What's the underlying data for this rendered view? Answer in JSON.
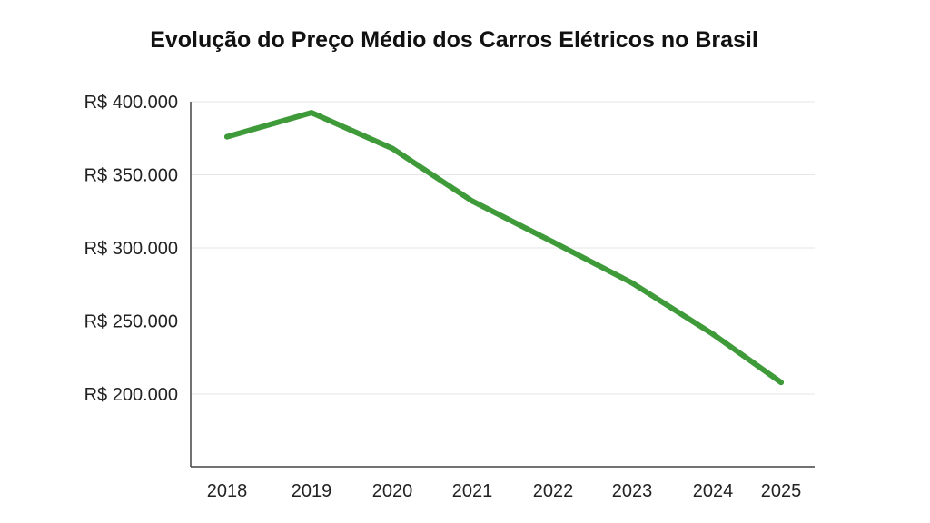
{
  "chart_data": {
    "type": "line",
    "title": "Evolução do Preço Médio dos Carros Elétricos no Brasil",
    "xlabel": "",
    "ylabel": "",
    "categories": [
      "2018",
      "2019",
      "2020",
      "2021",
      "2022",
      "2023",
      "2024",
      "2025"
    ],
    "values": [
      376000,
      392500,
      368000,
      332000,
      304000,
      276000,
      241000,
      208000
    ],
    "ylim": [
      150000,
      400000
    ],
    "yticks": [
      200000,
      250000,
      300000,
      350000,
      400000
    ],
    "ytick_labels": [
      "R$ 200.000",
      "R$ 250.000",
      "R$ 300.000",
      "R$ 350.000",
      "R$ 400.000"
    ],
    "grid": true,
    "legend": "none",
    "line_color": "#3f9b3a"
  }
}
